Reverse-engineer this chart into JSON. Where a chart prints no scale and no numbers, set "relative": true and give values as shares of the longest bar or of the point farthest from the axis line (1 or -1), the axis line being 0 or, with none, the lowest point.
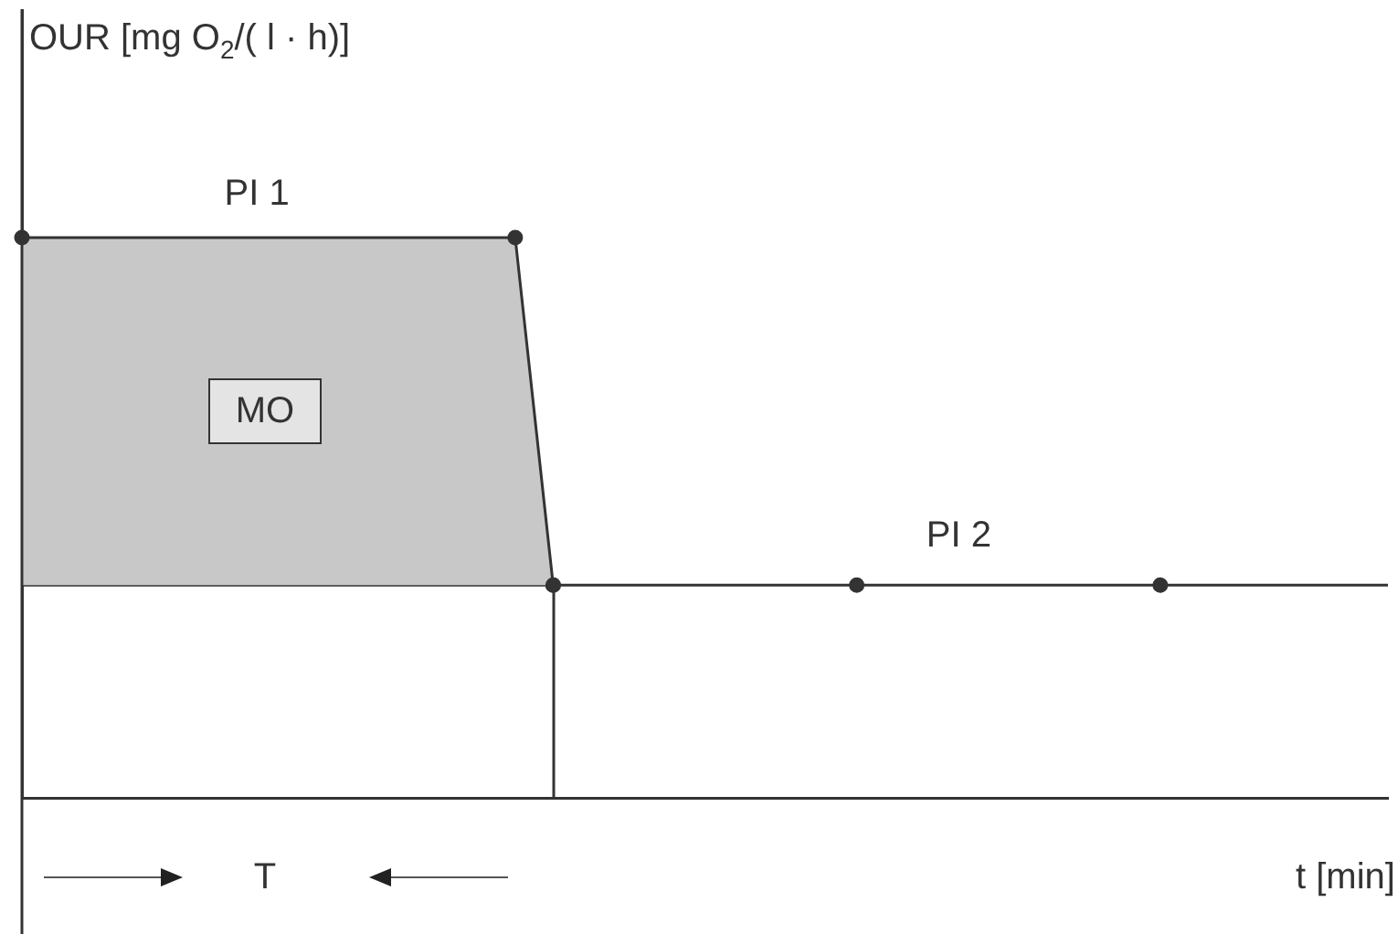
{
  "chart_data": {
    "type": "line",
    "relative": true,
    "ylabel": "OUR [mg O$_{2}$/( l · h)]",
    "xlabel": "t [min]",
    "categories": [
      null,
      null,
      null,
      null,
      null,
      null,
      null,
      null,
      null,
      null,
      null,
      null,
      null,
      null,
      null,
      null,
      null,
      null,
      null,
      null,
      null,
      null,
      null,
      null,
      null,
      null,
      null,
      null,
      null,
      null,
      null,
      null,
      null,
      null,
      null,
      null,
      null
    ],
    "series": [
      {
        "type": "area",
        "color": "#c8c8c8",
        "values": [
          1,
          null,
          null,
          null,
          null,
          null,
          null,
          null,
          null,
          null,
          null,
          null,
          null,
          1,
          0.38,
          null,
          null,
          null,
          null,
          null,
          null,
          null,
          null,
          null,
          null,
          null,
          null,
          null,
          null,
          null,
          null,
          null,
          null,
          null,
          null,
          null,
          null
        ]
      },
      {
        "color": "#333333",
        "values": [
          0.38,
          null,
          null,
          null,
          null,
          null,
          null,
          null,
          null,
          null,
          null,
          null,
          null,
          null,
          0.38,
          null,
          null,
          null,
          null,
          null,
          null,
          null,
          0.38,
          null,
          null,
          null,
          null,
          null,
          null,
          null,
          0.38,
          null,
          null,
          null,
          null,
          null,
          0.38
        ]
      }
    ],
    "annotations": [
      "PI 1",
      "MO",
      "PI 2",
      "T"
    ],
    "marker": "circle",
    "grid": false,
    "legend": false
  }
}
